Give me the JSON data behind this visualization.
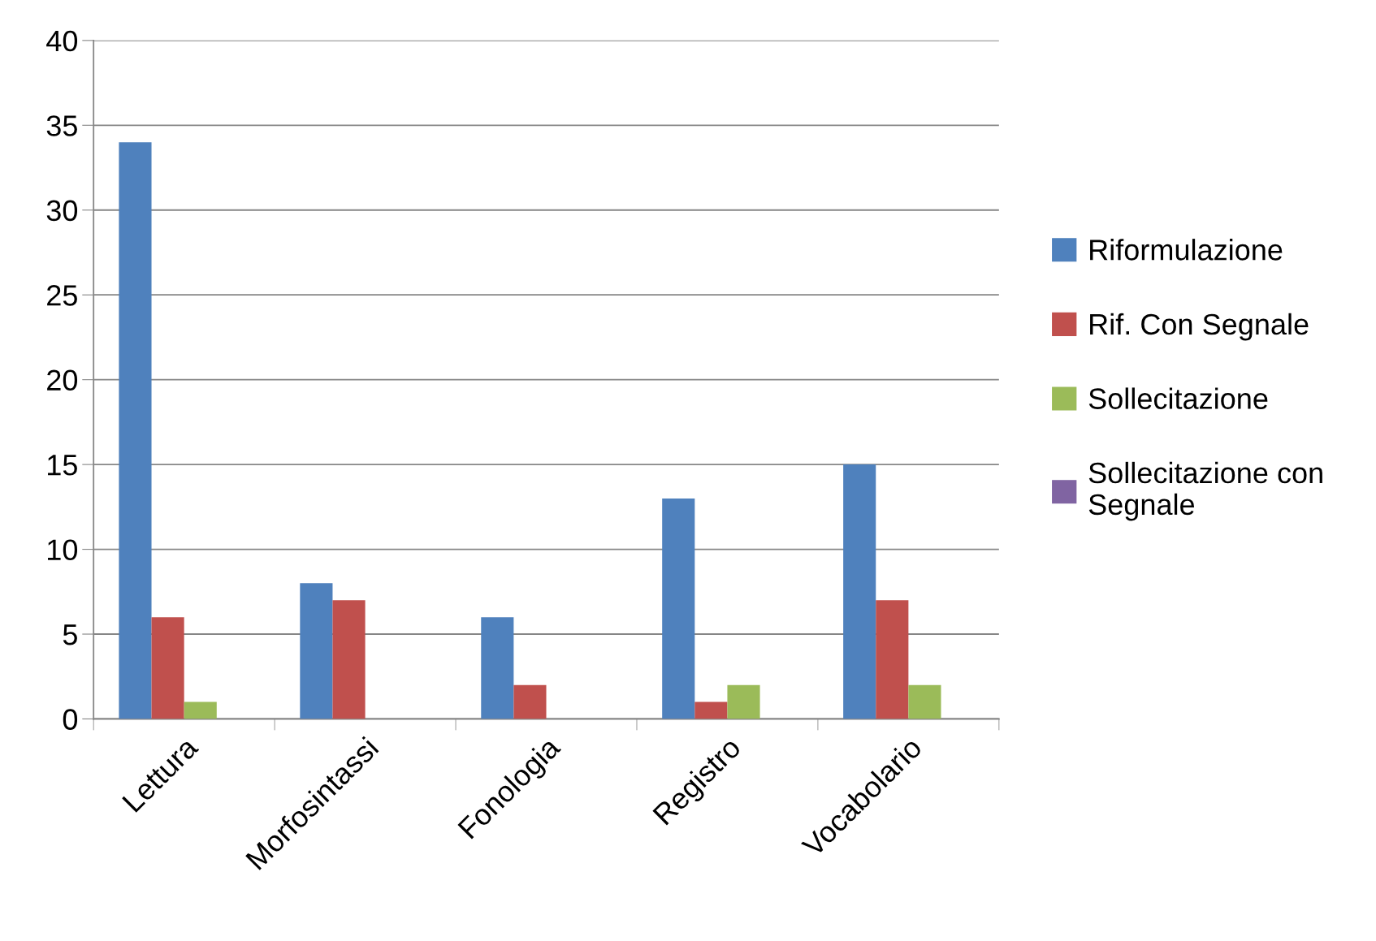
{
  "chart_data": {
    "type": "bar",
    "categories": [
      "Lettura",
      "Morfosintassi",
      "Fonologia",
      "Registro",
      "Vocabolario"
    ],
    "series": [
      {
        "name": "Riformulazione",
        "color": "#4f81bd",
        "values": [
          34,
          8,
          6,
          13,
          15
        ]
      },
      {
        "name": "Rif. Con Segnale",
        "color": "#c0504d",
        "values": [
          6,
          7,
          2,
          1,
          7
        ]
      },
      {
        "name": "Sollecitazione",
        "color": "#9bbb59",
        "values": [
          1,
          0,
          0,
          2,
          2
        ]
      },
      {
        "name": "Sollecitazione con Segnale",
        "color": "#8064a2",
        "values": [
          0,
          0,
          0,
          0,
          0
        ]
      }
    ],
    "ylim": [
      0,
      40
    ],
    "yticks": [
      0,
      5,
      10,
      15,
      20,
      25,
      30,
      35,
      40
    ],
    "grid": "y",
    "legend": "right"
  }
}
